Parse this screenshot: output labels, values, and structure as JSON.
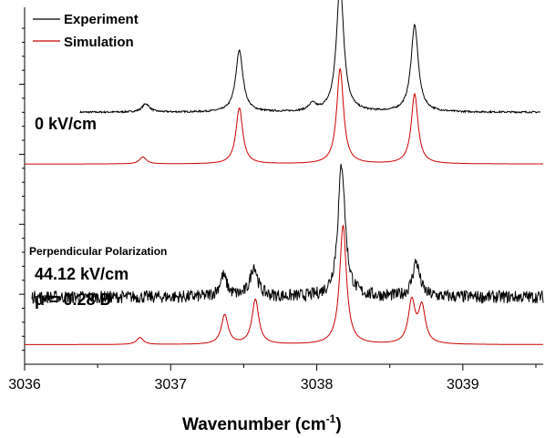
{
  "chart_data": {
    "type": "line",
    "xlabel_main": "Wavenumber (cm",
    "xlabel_sup": "-1",
    "xlabel_end": ")",
    "xlim": [
      3036,
      3039.55
    ],
    "x_ticks": [
      {
        "value": 3036,
        "label": "3036"
      },
      {
        "value": 3037,
        "label": "3037"
      },
      {
        "value": 3038,
        "label": "3038"
      },
      {
        "value": 3039,
        "label": "3039"
      }
    ],
    "legend": {
      "placement": "top-left",
      "entries": [
        {
          "label": "Experiment",
          "color": "#000000"
        },
        {
          "label": "Simulation",
          "color": "#cc0000"
        }
      ]
    },
    "annotations": {
      "field_zero": "0 kV/cm",
      "polarization": "Perpendicular Polarization",
      "field_high": "44.12 kV/cm",
      "dipole": "μ = 0.28 D"
    },
    "offsets": {
      "upper_experiment": 0.8,
      "upper_simulation": 0.43,
      "lower_experiment": -0.52,
      "lower_simulation": -0.86
    },
    "series": [
      {
        "name": "Experiment",
        "panel": "0 kV/cm",
        "color": "#000000",
        "x_range": [
          3036.38,
          3039.53
        ],
        "width": 0.03,
        "noise": 0.006,
        "peaks": [
          {
            "x": 3036.83,
            "height": 0.06
          },
          {
            "x": 3037.47,
            "height": 0.44
          },
          {
            "x": 3037.97,
            "height": 0.05
          },
          {
            "x": 3038.16,
            "height": 0.92
          },
          {
            "x": 3038.67,
            "height": 0.62
          }
        ]
      },
      {
        "name": "Simulation",
        "panel": "0 kV/cm",
        "color": "#cc0000",
        "x_range": [
          3036.0,
          3039.55
        ],
        "width": 0.028,
        "noise": 0,
        "peaks": [
          {
            "x": 3036.81,
            "height": 0.05
          },
          {
            "x": 3037.47,
            "height": 0.4
          },
          {
            "x": 3038.16,
            "height": 0.68
          },
          {
            "x": 3038.67,
            "height": 0.5
          }
        ]
      },
      {
        "name": "Experiment",
        "panel": "44.12 kV/cm",
        "color": "#000000",
        "x_range": [
          3036.05,
          3039.55
        ],
        "width": 0.03,
        "noise": 0.045,
        "peaks": [
          {
            "x": 3037.36,
            "height": 0.15
          },
          {
            "x": 3037.57,
            "height": 0.22
          },
          {
            "x": 3038.17,
            "height": 0.95
          },
          {
            "x": 3038.68,
            "height": 0.25
          }
        ]
      },
      {
        "name": "Simulation",
        "panel": "44.12 kV/cm",
        "color": "#cc0000",
        "x_range": [
          3036.0,
          3039.55
        ],
        "width": 0.028,
        "noise": 0,
        "peaks": [
          {
            "x": 3036.79,
            "height": 0.05
          },
          {
            "x": 3037.37,
            "height": 0.21
          },
          {
            "x": 3037.58,
            "height": 0.32
          },
          {
            "x": 3038.18,
            "height": 0.85
          },
          {
            "x": 3038.65,
            "height": 0.3
          },
          {
            "x": 3038.72,
            "height": 0.26
          }
        ]
      }
    ]
  }
}
